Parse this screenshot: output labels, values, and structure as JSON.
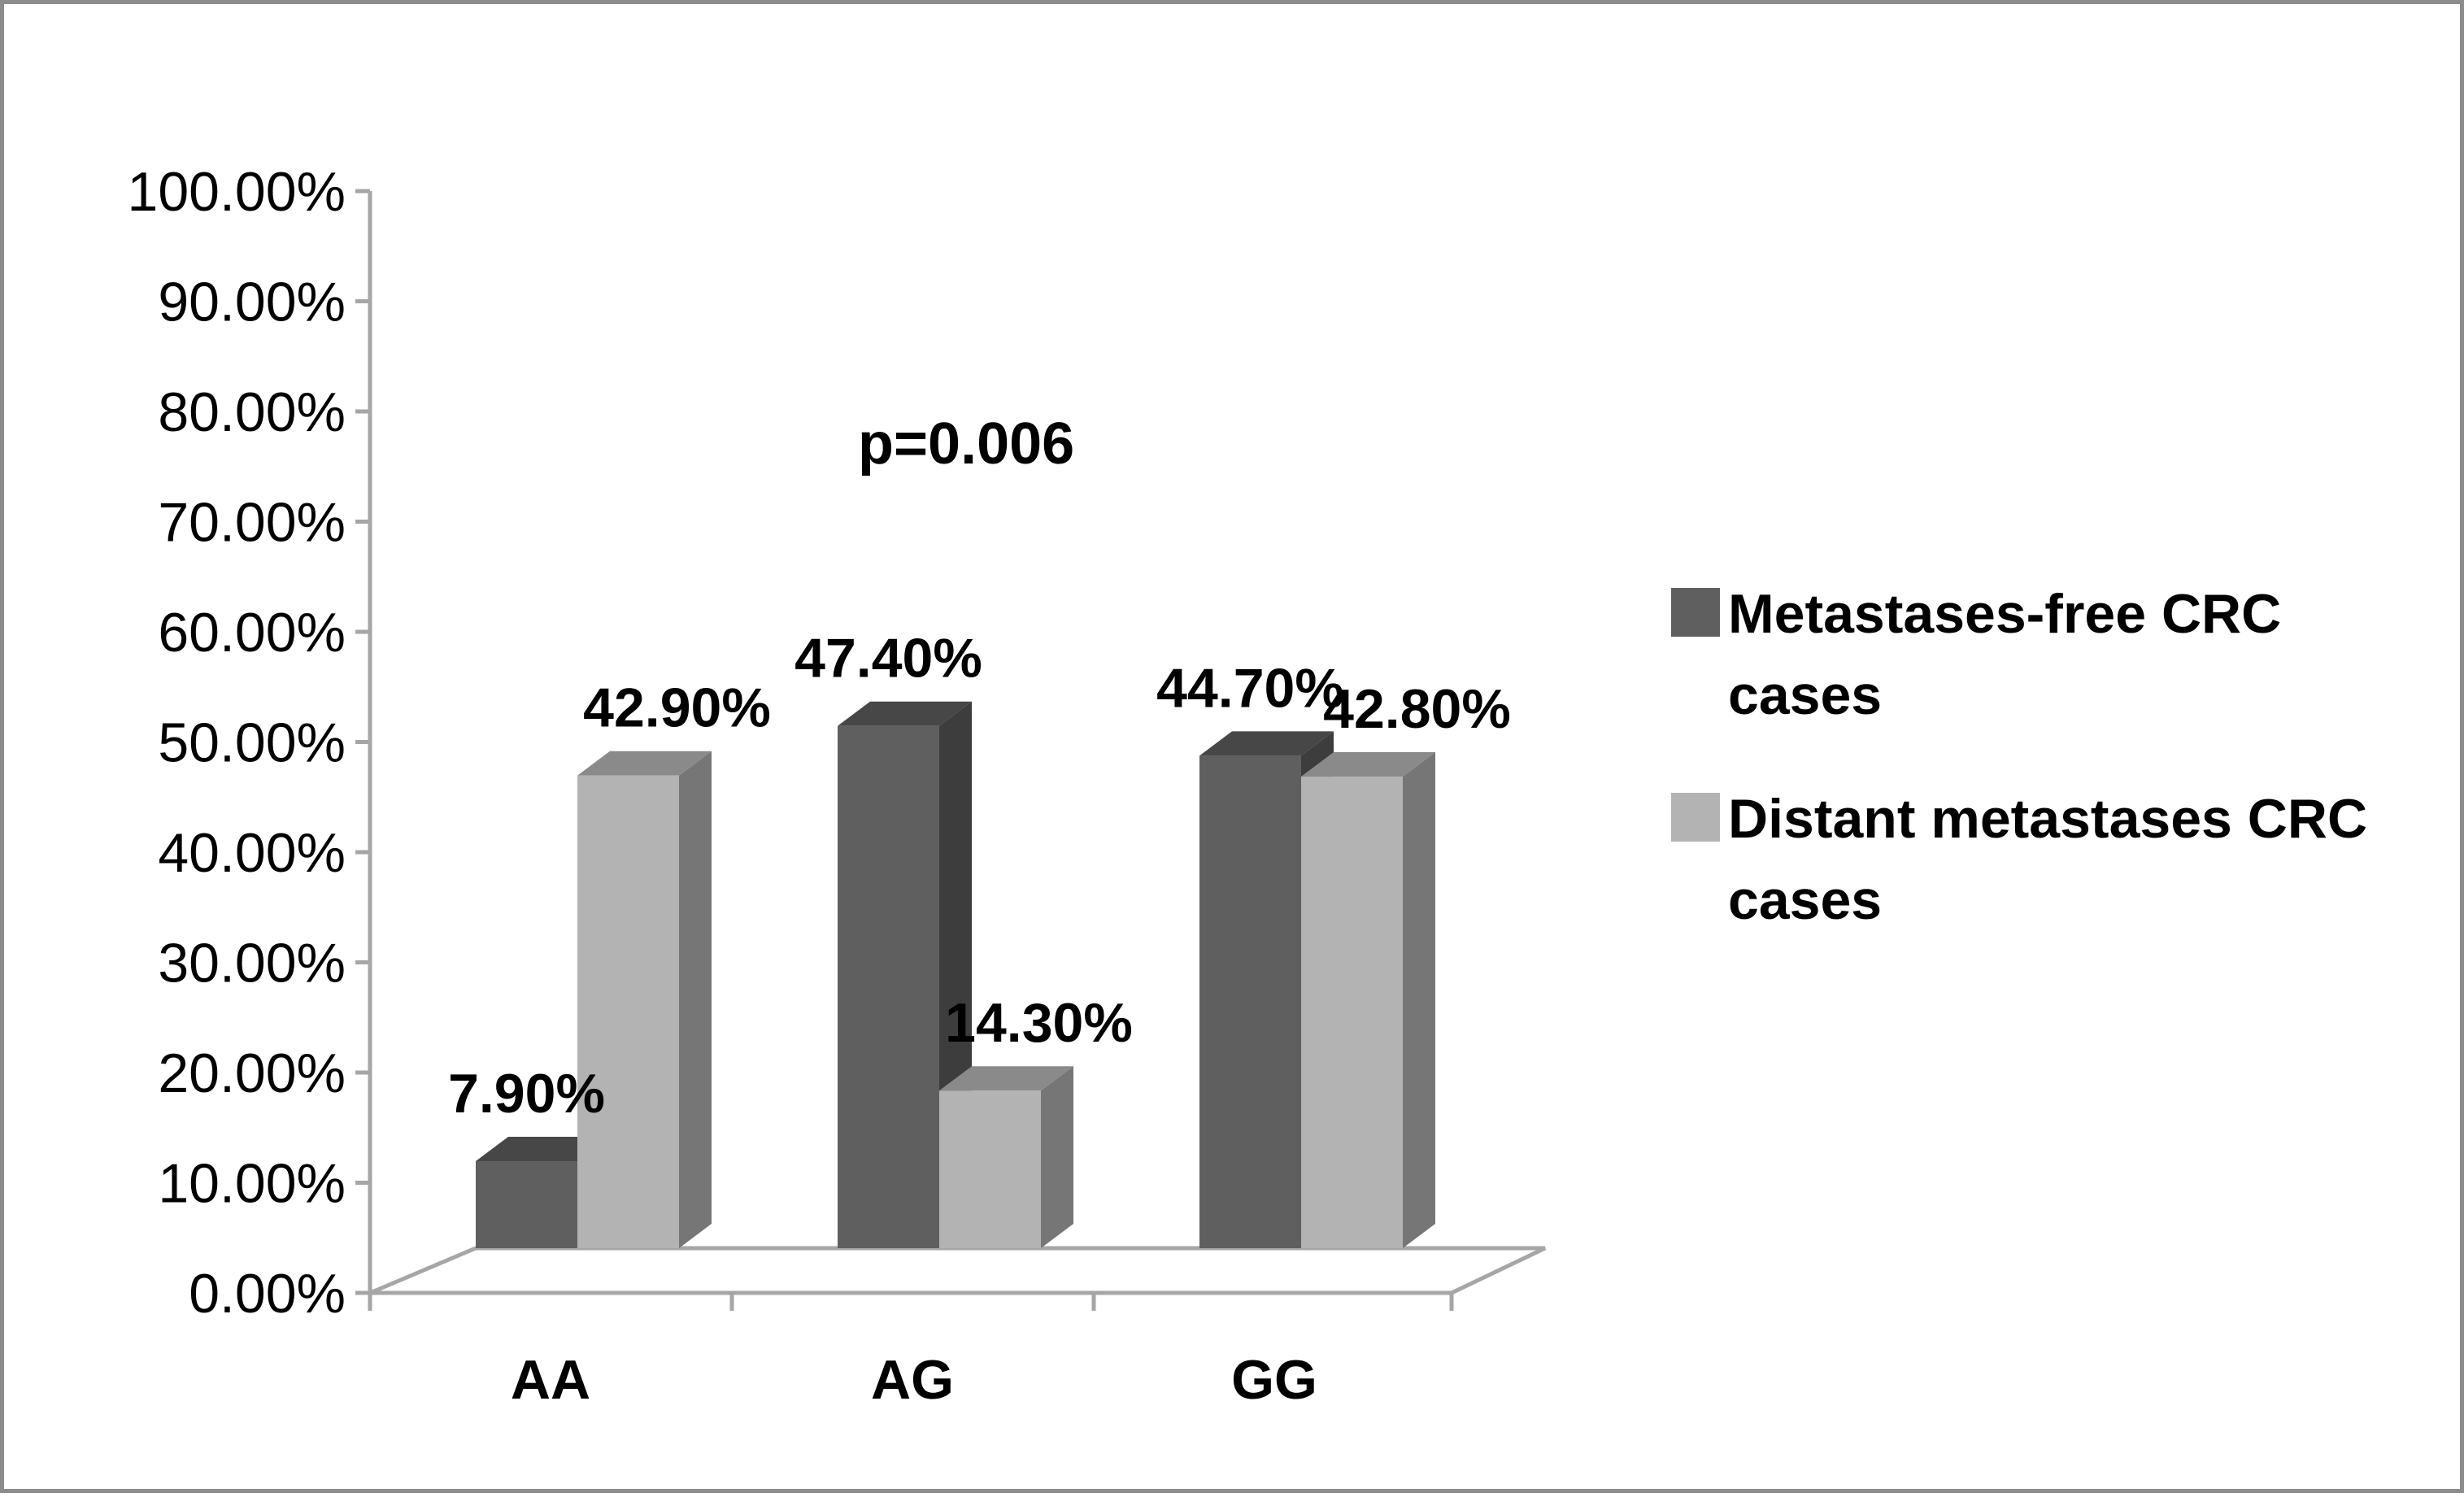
{
  "chart_data": {
    "type": "bar",
    "title": "",
    "xlabel": "",
    "ylabel": "",
    "ylim": [
      0,
      100
    ],
    "ytick_labels": [
      "0.00%",
      "10.00%",
      "20.00%",
      "30.00%",
      "40.00%",
      "50.00%",
      "60.00%",
      "70.00%",
      "80.00%",
      "90.00%",
      "100.00%"
    ],
    "categories": [
      "AA",
      "AG",
      "GG"
    ],
    "series": [
      {
        "name": "Metastases-free CRC cases",
        "name_lines": [
          "Metastases-free CRC",
          "cases"
        ],
        "values": [
          7.9,
          47.4,
          44.7
        ],
        "labels": [
          "7.90%",
          "47.40%",
          "44.70%"
        ],
        "color": "#5f5f5f",
        "top_color": "#474747",
        "side_color": "#3d3d3d"
      },
      {
        "name": "Distant metastases CRC cases",
        "name_lines": [
          "Distant metastases CRC",
          "cases"
        ],
        "values": [
          42.9,
          14.3,
          42.8
        ],
        "labels": [
          "42.90%",
          "14.30%",
          "42.80%"
        ],
        "color": "#b3b3b3",
        "top_color": "#8a8a8a",
        "side_color": "#767676"
      }
    ],
    "annotations": [
      {
        "text": "p=0.006"
      }
    ],
    "legend_position": "right",
    "grid": false
  }
}
